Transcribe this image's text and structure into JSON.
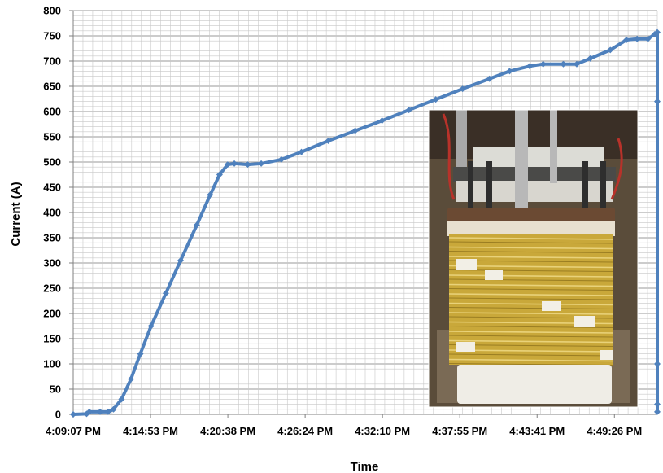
{
  "chart_data": {
    "type": "line",
    "title": "",
    "xlabel": "Time",
    "ylabel": "Current (A)",
    "ylim": [
      0,
      800
    ],
    "yticks": [
      0,
      50,
      100,
      150,
      200,
      250,
      300,
      350,
      400,
      450,
      500,
      550,
      600,
      650,
      700,
      750,
      800
    ],
    "x_tick_labels": [
      "4:09:07 PM",
      "4:14:53 PM",
      "4:20:38 PM",
      "4:26:24 PM",
      "4:32:10 PM",
      "4:37:55 PM",
      "4:43:41 PM",
      "4:49:26 PM"
    ],
    "x_unit": "minutes after 4:09:07 PM",
    "xlim": [
      0,
      43.5
    ],
    "grid": true,
    "series": [
      {
        "color": "#4f81bd",
        "points": [
          [
            0,
            0
          ],
          [
            1.0,
            1
          ],
          [
            1.2,
            5
          ],
          [
            2.0,
            5
          ],
          [
            2.6,
            5
          ],
          [
            3.0,
            10
          ],
          [
            3.6,
            30
          ],
          [
            4.3,
            70
          ],
          [
            5.0,
            120
          ],
          [
            5.8,
            175
          ],
          [
            6.9,
            240
          ],
          [
            8.0,
            305
          ],
          [
            9.2,
            375
          ],
          [
            10.2,
            435
          ],
          [
            10.9,
            475
          ],
          [
            11.5,
            495
          ],
          [
            12.0,
            497
          ],
          [
            13.0,
            495
          ],
          [
            14.0,
            497
          ],
          [
            15.5,
            505
          ],
          [
            17.0,
            520
          ],
          [
            19.0,
            542
          ],
          [
            21.0,
            562
          ],
          [
            23.0,
            582
          ],
          [
            25.0,
            603
          ],
          [
            27.0,
            624
          ],
          [
            29.0,
            645
          ],
          [
            31.0,
            665
          ],
          [
            32.5,
            680
          ],
          [
            34.0,
            690
          ],
          [
            35.0,
            694
          ],
          [
            36.5,
            694
          ],
          [
            37.5,
            694
          ],
          [
            38.5,
            705
          ],
          [
            40.0,
            722
          ],
          [
            41.2,
            742
          ],
          [
            42.0,
            744
          ],
          [
            42.8,
            744
          ],
          [
            43.3,
            753
          ],
          [
            43.5,
            757
          ],
          [
            43.5,
            620
          ],
          [
            43.5,
            100
          ],
          [
            43.5,
            20
          ],
          [
            43.5,
            5
          ]
        ]
      }
    ]
  },
  "inset_photo": {
    "subject": "superconducting-coil-stack-photo",
    "colors": {
      "tape": "#c9a83a",
      "flange": "#6b4a33",
      "metal": "#b8b8b8",
      "background": "#5a4c3a"
    }
  }
}
